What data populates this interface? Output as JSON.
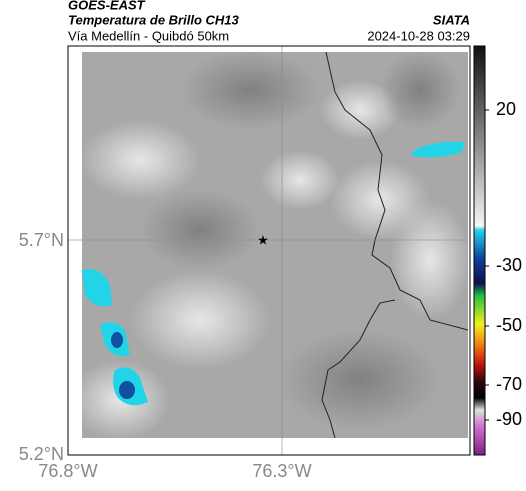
{
  "header": {
    "source": "GOES-EAST",
    "title": "Temperatura de Brillo CH13",
    "subtitle": "Vía Medellín - Quibdó 50km",
    "brand": "SIATA",
    "timestamp": "2024-10-28 03:29"
  },
  "map": {
    "lat_labels": [
      "5.7°N",
      "5.2°N"
    ],
    "lon_labels": [
      "76.8°W",
      "76.3°W"
    ]
  },
  "colorbar": {
    "labels": [
      "20",
      "-30",
      "-50",
      "-70",
      "-90"
    ]
  }
}
